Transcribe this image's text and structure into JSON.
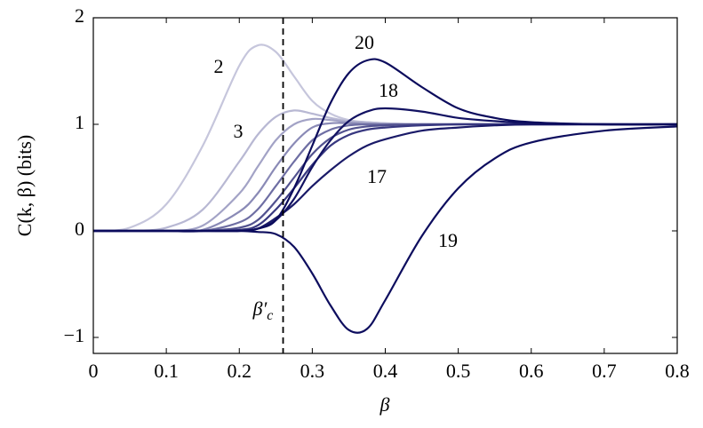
{
  "chart_data": {
    "type": "line",
    "x_label": "β",
    "y_label": "C(k, β) (bits)",
    "x": [
      0,
      0.05,
      0.1,
      0.15,
      0.2,
      0.225,
      0.25,
      0.275,
      0.3,
      0.325,
      0.35,
      0.375,
      0.4,
      0.45,
      0.5,
      0.55,
      0.6,
      0.7,
      0.8
    ],
    "series": [
      {
        "name": "2",
        "color": "#c6c6dc",
        "values": [
          0,
          0.03,
          0.25,
          0.8,
          1.55,
          1.74,
          1.68,
          1.45,
          1.22,
          1.1,
          1.04,
          1.02,
          1.01,
          1,
          1,
          1,
          1,
          1,
          1
        ]
      },
      {
        "name": "3",
        "color": "#b8b8d3",
        "values": [
          0,
          0,
          0.03,
          0.2,
          0.65,
          0.9,
          1.07,
          1.13,
          1.1,
          1.06,
          1.03,
          1.02,
          1.01,
          1,
          1,
          1,
          1,
          1,
          1
        ]
      },
      {
        "color": "#a3a3c6",
        "values": [
          0,
          0,
          0,
          0.05,
          0.35,
          0.6,
          0.85,
          1.0,
          1.05,
          1.04,
          1.02,
          1.01,
          1,
          1,
          1,
          1,
          1,
          1,
          1
        ]
      },
      {
        "color": "#8a8ab6",
        "values": [
          0,
          0,
          0,
          0.01,
          0.18,
          0.35,
          0.6,
          0.82,
          0.97,
          1.01,
          1.01,
          1,
          1,
          1,
          1,
          1,
          1,
          1,
          1
        ]
      },
      {
        "color": "#6e6ea3",
        "values": [
          0,
          0,
          0,
          0,
          0.08,
          0.2,
          0.42,
          0.65,
          0.85,
          0.95,
          0.99,
          1,
          1,
          1,
          1,
          1,
          1,
          1,
          1
        ]
      },
      {
        "color": "#52528f",
        "values": [
          0,
          0,
          0,
          0,
          0.03,
          0.1,
          0.28,
          0.5,
          0.72,
          0.87,
          0.95,
          0.98,
          0.99,
          1,
          1,
          1,
          1,
          1,
          1
        ]
      },
      {
        "color": "#383880",
        "values": [
          0,
          0,
          0,
          0,
          0.01,
          0.05,
          0.2,
          0.4,
          0.62,
          0.8,
          0.9,
          0.95,
          0.97,
          0.99,
          1,
          1,
          1,
          1,
          1
        ]
      },
      {
        "name": "17",
        "color": "#1a1a68",
        "values": [
          0,
          0,
          0,
          0,
          0,
          0.02,
          0.12,
          0.25,
          0.42,
          0.57,
          0.7,
          0.8,
          0.86,
          0.94,
          0.97,
          0.99,
          1,
          1,
          1
        ]
      },
      {
        "name": "18",
        "color": "#121262",
        "values": [
          0,
          0,
          0,
          0,
          0,
          0.02,
          0.1,
          0.3,
          0.6,
          0.85,
          1.03,
          1.12,
          1.15,
          1.12,
          1.06,
          1.03,
          1.01,
          1,
          1
        ]
      },
      {
        "name": "19",
        "color": "#0d0d5e",
        "values": [
          0,
          0,
          0,
          0,
          0,
          -0.01,
          -0.03,
          -0.15,
          -0.4,
          -0.7,
          -0.93,
          -0.92,
          -0.65,
          -0.05,
          0.4,
          0.68,
          0.83,
          0.94,
          0.98
        ]
      },
      {
        "name": "20",
        "color": "#0b0b5c",
        "values": [
          0,
          0,
          0,
          0,
          0,
          0.02,
          0.1,
          0.4,
          0.8,
          1.2,
          1.48,
          1.6,
          1.58,
          1.35,
          1.15,
          1.06,
          1.02,
          1,
          1
        ]
      }
    ],
    "vline": {
      "x": 0.26,
      "label": "β′",
      "label_sub": "c"
    },
    "xlim": [
      0,
      0.8
    ],
    "ylim": [
      -1.15,
      2
    ],
    "xticks": [
      0,
      0.1,
      0.2,
      0.3,
      0.4,
      0.5,
      0.6,
      0.7,
      0.8
    ],
    "yticks": [
      -1,
      0,
      1,
      2
    ]
  }
}
